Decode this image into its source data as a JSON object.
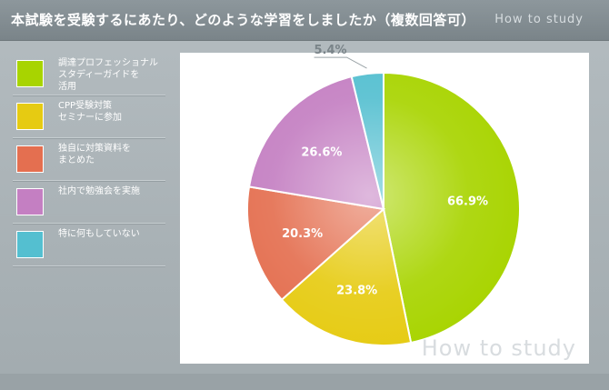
{
  "header": {
    "title": "本試験を受験するにあたり、どのような学習をしましたか（複数回答可）",
    "brand": "How to study"
  },
  "legend": [
    {
      "label": "調達プロフェッショナル\nスタディーガイドを\n活用",
      "color": "#a8d400"
    },
    {
      "label": "CPP受験対策\nセミナーに参加",
      "color": "#e6cb12"
    },
    {
      "label": "独自に対策資料を\nまとめた",
      "color": "#e46f50"
    },
    {
      "label": "社内で勉強会を実施",
      "color": "#c47fc2"
    },
    {
      "label": "特に何もしていない",
      "color": "#54bfd0"
    }
  ],
  "chart_data": {
    "type": "pie",
    "slices": [
      {
        "name": "調達プロフェッショナルスタディーガイドを活用",
        "value": 66.9,
        "label": "66.9%",
        "color": "#a8d400"
      },
      {
        "name": "CPP受験対策セミナーに参加",
        "value": 23.8,
        "label": "23.8%",
        "color": "#e6cb12"
      },
      {
        "name": "独自に対策資料をまとめた",
        "value": 20.3,
        "label": "20.3%",
        "color": "#e46f50"
      },
      {
        "name": "社内で勉強会を実施",
        "value": 26.6,
        "label": "26.6%",
        "color": "#c47fc2"
      },
      {
        "name": "特に何もしていない",
        "value": 5.4,
        "label": "5.4%",
        "color": "#54bfd0"
      }
    ],
    "legend_position": "left",
    "watermark": "How to study"
  }
}
